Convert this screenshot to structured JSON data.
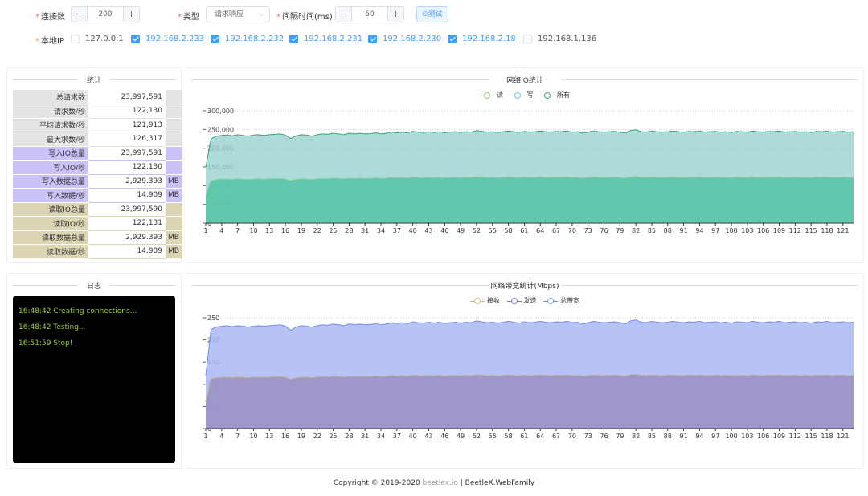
{
  "form": {
    "connections": {
      "label": "连接数",
      "value": "200",
      "minus": "−",
      "plus": "+"
    },
    "type": {
      "label": "类型",
      "value": "请求响应",
      "chevron": "⌵"
    },
    "interval": {
      "label": "间隔时间(ms)",
      "value": "50",
      "minus": "−",
      "plus": "+"
    },
    "test_button": "⊙测试",
    "local_ip": {
      "label": "本地IP",
      "items": [
        {
          "ip": "127.0.0.1",
          "checked": false
        },
        {
          "ip": "192.168.2.233",
          "checked": true
        },
        {
          "ip": "192.168.2.232",
          "checked": true
        },
        {
          "ip": "192.168.2.231",
          "checked": true
        },
        {
          "ip": "192.168.2.230",
          "checked": true
        },
        {
          "ip": "192.168.2.18",
          "checked": true
        },
        {
          "ip": "192.168.1.136",
          "checked": false
        }
      ]
    }
  },
  "stats": {
    "title": "统计",
    "rows": [
      {
        "label": "总请求数",
        "value": "23,997,591",
        "unit": ""
      },
      {
        "label": "请求数/秒",
        "value": "122,130",
        "unit": ""
      },
      {
        "label": "平均请求数/秒",
        "value": "121,913",
        "unit": ""
      },
      {
        "label": "最大求数/秒",
        "value": "126,317",
        "unit": ""
      },
      {
        "label": "写入IO总量",
        "value": "23,997,591",
        "unit": ""
      },
      {
        "label": "写入IO/秒",
        "value": "122,130",
        "unit": ""
      },
      {
        "label": "写入数据总量",
        "value": "2,929.393",
        "unit": "MB"
      },
      {
        "label": "写入数据/秒",
        "value": "14.909",
        "unit": "MB"
      },
      {
        "label": "读取IO总量",
        "value": "23,997,590",
        "unit": ""
      },
      {
        "label": "读取IO/秒",
        "value": "122,131",
        "unit": ""
      },
      {
        "label": "读取数据总量",
        "value": "2,929.393",
        "unit": "MB"
      },
      {
        "label": "读取数据/秒",
        "value": "14.909",
        "unit": "MB"
      }
    ]
  },
  "log": {
    "title": "日志",
    "lines": [
      "16:48:42 Creating connections...",
      "16:48:42 Testing...",
      "16:51:59 Stop!"
    ]
  },
  "footer": {
    "prefix": "Copyright © 2019-2020 ",
    "brand": "beetlex.io",
    "suffix": " | BeetleX.WebFamily"
  },
  "colors": {
    "io_read": "#91cc75",
    "io_write": "#73c0de",
    "io_all": "#3ba272",
    "bw_recv": "#d4b96a",
    "bw_send": "#7b6fc6",
    "bw_total": "#6f8df0"
  },
  "chart_data": [
    {
      "type": "area",
      "title": "网络IO统计",
      "legend": [
        "读",
        "写",
        "所有"
      ],
      "ylim": [
        0,
        300000
      ],
      "y_ticks": [
        "0",
        "50,000",
        "100,000",
        "150,000",
        "200,000",
        "250,000",
        "300,000"
      ],
      "x_ticks": [
        "1",
        "4",
        "7",
        "10",
        "13",
        "16",
        "19",
        "22",
        "25",
        "28",
        "31",
        "34",
        "37",
        "40",
        "43",
        "46",
        "49",
        "52",
        "55",
        "58",
        "61",
        "64",
        "67",
        "70",
        "73",
        "76",
        "79",
        "82",
        "85",
        "88",
        "91",
        "94",
        "97",
        "100",
        "103",
        "106",
        "109",
        "112",
        "115",
        "118",
        "121"
      ],
      "x_count": 123,
      "series": [
        {
          "name": "所有",
          "values": [
            150000,
            225000,
            232000,
            234000,
            235000,
            233000,
            236000,
            234000,
            232000,
            235000,
            236000,
            234000,
            236000,
            237000,
            238000,
            235000,
            226000,
            233000,
            236000,
            235000,
            232000,
            236000,
            238000,
            237000,
            240000,
            238000,
            236000,
            240000,
            238000,
            240000,
            238000,
            239000,
            241000,
            238000,
            240000,
            243000,
            241000,
            243000,
            241000,
            245000,
            243000,
            242000,
            244000,
            242000,
            244000,
            241000,
            243000,
            244000,
            242000,
            244000,
            243000,
            247000,
            245000,
            243000,
            244000,
            242000,
            244000,
            246000,
            244000,
            242000,
            245000,
            243000,
            244000,
            246000,
            244000,
            243000,
            245000,
            244000,
            246000,
            243000,
            244000,
            240000,
            243000,
            246000,
            244000,
            243000,
            244000,
            245000,
            243000,
            240000,
            247000,
            249000,
            244000,
            243000,
            246000,
            244000,
            243000,
            244000,
            246000,
            244000,
            243000,
            245000,
            244000,
            246000,
            243000,
            244000,
            245000,
            243000,
            244000,
            242000,
            245000,
            244000,
            243000,
            246000,
            244000,
            243000,
            245000,
            244000,
            246000,
            243000,
            244000,
            245000,
            243000,
            244000,
            242000,
            245000,
            244000,
            246000,
            243000,
            244000,
            245000,
            243000,
            244000
          ]
        },
        {
          "name": "读",
          "values": [
            75000,
            112000,
            116000,
            117000,
            117500,
            116500,
            118000,
            117000,
            116000,
            117500,
            118000,
            117000,
            118000,
            118500,
            119000,
            117500,
            113000,
            116500,
            118000,
            117500,
            116000,
            118000,
            119000,
            118500,
            120000,
            119000,
            118000,
            120000,
            119000,
            120000,
            119000,
            119500,
            120500,
            119000,
            120000,
            121500,
            120500,
            121500,
            120500,
            122500,
            121500,
            121000,
            122000,
            121000,
            122000,
            120500,
            121500,
            122000,
            121000,
            122000,
            121500,
            123500,
            122500,
            121500,
            122000,
            121000,
            122000,
            123000,
            122000,
            121000,
            122500,
            121500,
            122000,
            123000,
            122000,
            121500,
            122500,
            122000,
            123000,
            121500,
            122000,
            120000,
            121500,
            123000,
            122000,
            121500,
            122000,
            122500,
            121500,
            120000,
            123500,
            124500,
            122000,
            121500,
            123000,
            122000,
            121500,
            122000,
            123000,
            122000,
            121500,
            122500,
            122000,
            123000,
            121500,
            122000,
            122500,
            121500,
            122000,
            121000,
            122500,
            122000,
            121500,
            123000,
            122000,
            121500,
            122500,
            122000,
            123000,
            121500,
            122000,
            122500,
            121500,
            122000,
            121000,
            122500,
            122000,
            123000,
            121500,
            122000,
            122500,
            121500,
            122000
          ]
        },
        {
          "name": "写",
          "values": [
            75000,
            112000,
            116000,
            117000,
            117500,
            116500,
            118000,
            117000,
            116000,
            117500,
            118000,
            117000,
            118000,
            118500,
            119000,
            117500,
            113000,
            116500,
            118000,
            117500,
            116000,
            118000,
            119000,
            118500,
            120000,
            119000,
            118000,
            120000,
            119000,
            120000,
            119000,
            119500,
            120500,
            119000,
            120000,
            121500,
            120500,
            121500,
            120500,
            122500,
            121500,
            121000,
            122000,
            121000,
            122000,
            120500,
            121500,
            122000,
            121000,
            122000,
            121500,
            123500,
            122500,
            121500,
            122000,
            121000,
            122000,
            123000,
            122000,
            121000,
            122500,
            121500,
            122000,
            123000,
            122000,
            121500,
            122500,
            122000,
            123000,
            121500,
            122000,
            120000,
            121500,
            123000,
            122000,
            121500,
            122000,
            122500,
            121500,
            120000,
            123500,
            124500,
            122000,
            121500,
            123000,
            122000,
            121500,
            122000,
            123000,
            122000,
            121500,
            122500,
            122000,
            123000,
            121500,
            122000,
            122500,
            121500,
            122000,
            121000,
            122500,
            122000,
            121500,
            123000,
            122000,
            121500,
            122500,
            122000,
            123000,
            121500,
            122000,
            122500,
            121500,
            122000,
            121000,
            122500,
            122000,
            123000,
            121500,
            122000,
            122500,
            121500,
            122000
          ]
        }
      ]
    },
    {
      "type": "area",
      "title": "网络带宽统计(Mbps)",
      "legend": [
        "接收",
        "发送",
        "总带宽"
      ],
      "ylim": [
        0,
        250
      ],
      "y_ticks": [
        "0",
        "50",
        "100",
        "150",
        "200",
        "250"
      ],
      "x_ticks": [
        "1",
        "4",
        "7",
        "10",
        "13",
        "16",
        "19",
        "22",
        "25",
        "28",
        "31",
        "34",
        "37",
        "40",
        "43",
        "46",
        "49",
        "52",
        "55",
        "58",
        "61",
        "64",
        "67",
        "70",
        "73",
        "76",
        "79",
        "82",
        "85",
        "88",
        "91",
        "94",
        "97",
        "100",
        "103",
        "106",
        "109",
        "112",
        "115",
        "118",
        "121"
      ],
      "x_count": 123,
      "series": [
        {
          "name": "总带宽",
          "values": [
            120,
            224,
            229,
            231,
            232,
            230,
            232,
            231,
            229,
            231,
            232,
            231,
            232,
            233,
            234,
            231,
            222,
            229,
            232,
            231,
            229,
            232,
            234,
            233,
            236,
            234,
            232,
            236,
            234,
            236,
            234,
            235,
            237,
            234,
            236,
            239,
            237,
            239,
            237,
            241,
            239,
            238,
            240,
            238,
            240,
            237,
            239,
            240,
            238,
            240,
            239,
            243,
            241,
            239,
            240,
            238,
            240,
            242,
            240,
            238,
            241,
            239,
            240,
            242,
            240,
            239,
            241,
            240,
            242,
            239,
            240,
            236,
            239,
            242,
            240,
            239,
            240,
            241,
            239,
            236,
            243,
            245,
            240,
            239,
            242,
            240,
            239,
            240,
            242,
            240,
            239,
            241,
            240,
            242,
            239,
            240,
            241,
            239,
            240,
            238,
            241,
            240,
            239,
            242,
            240,
            239,
            241,
            240,
            242,
            239,
            240,
            241,
            239,
            240,
            238,
            241,
            240,
            242,
            239,
            240,
            241,
            239,
            240
          ]
        },
        {
          "name": "接收",
          "values": [
            60,
            112,
            114.5,
            115.5,
            116,
            115,
            116,
            115.5,
            114.5,
            115.5,
            116,
            115.5,
            116,
            116.5,
            117,
            115.5,
            111,
            114.5,
            116,
            115.5,
            114.5,
            116,
            117,
            116.5,
            118,
            117,
            116,
            118,
            117,
            118,
            117,
            117.5,
            118.5,
            117,
            118,
            119.5,
            118.5,
            119.5,
            118.5,
            120.5,
            119.5,
            119,
            120,
            119,
            120,
            118.5,
            119.5,
            120,
            119,
            120,
            119.5,
            121.5,
            120.5,
            119.5,
            120,
            119,
            120,
            121,
            120,
            119,
            120.5,
            119.5,
            120,
            121,
            120,
            119.5,
            120.5,
            120,
            121,
            119.5,
            120,
            118,
            119.5,
            121,
            120,
            119.5,
            120,
            120.5,
            119.5,
            118,
            121.5,
            122.5,
            120,
            119.5,
            121,
            120,
            119.5,
            120,
            121,
            120,
            119.5,
            120.5,
            120,
            121,
            119.5,
            120,
            120.5,
            119.5,
            120,
            119,
            120.5,
            120,
            119.5,
            121,
            120,
            119.5,
            120.5,
            120,
            121,
            119.5,
            120,
            120.5,
            119.5,
            120,
            119,
            120.5,
            120,
            121,
            119.5,
            120,
            120.5,
            119.5,
            120
          ]
        },
        {
          "name": "发送",
          "values": [
            60,
            112,
            114.5,
            115.5,
            116,
            115,
            116,
            115.5,
            114.5,
            115.5,
            116,
            115.5,
            116,
            116.5,
            117,
            115.5,
            111,
            114.5,
            116,
            115.5,
            114.5,
            116,
            117,
            116.5,
            118,
            117,
            116,
            118,
            117,
            118,
            117,
            117.5,
            118.5,
            117,
            118,
            119.5,
            118.5,
            119.5,
            118.5,
            120.5,
            119.5,
            119,
            120,
            119,
            120,
            118.5,
            119.5,
            120,
            119,
            120,
            119.5,
            121.5,
            120.5,
            119.5,
            120,
            119,
            120,
            121,
            120,
            119,
            120.5,
            119.5,
            120,
            121,
            120,
            119.5,
            120.5,
            120,
            121,
            119.5,
            120,
            118,
            119.5,
            121,
            120,
            119.5,
            120,
            120.5,
            119.5,
            118,
            121.5,
            122.5,
            120,
            119.5,
            121,
            120,
            119.5,
            120,
            121,
            120,
            119.5,
            120.5,
            120,
            121,
            119.5,
            120,
            120.5,
            119.5,
            120,
            119,
            120.5,
            120,
            119.5,
            121,
            120,
            119.5,
            120.5,
            120,
            121,
            119.5,
            120,
            120.5,
            119.5,
            120,
            119,
            120.5,
            120,
            121,
            119.5,
            120,
            120.5,
            119.5,
            120
          ]
        }
      ]
    }
  ]
}
